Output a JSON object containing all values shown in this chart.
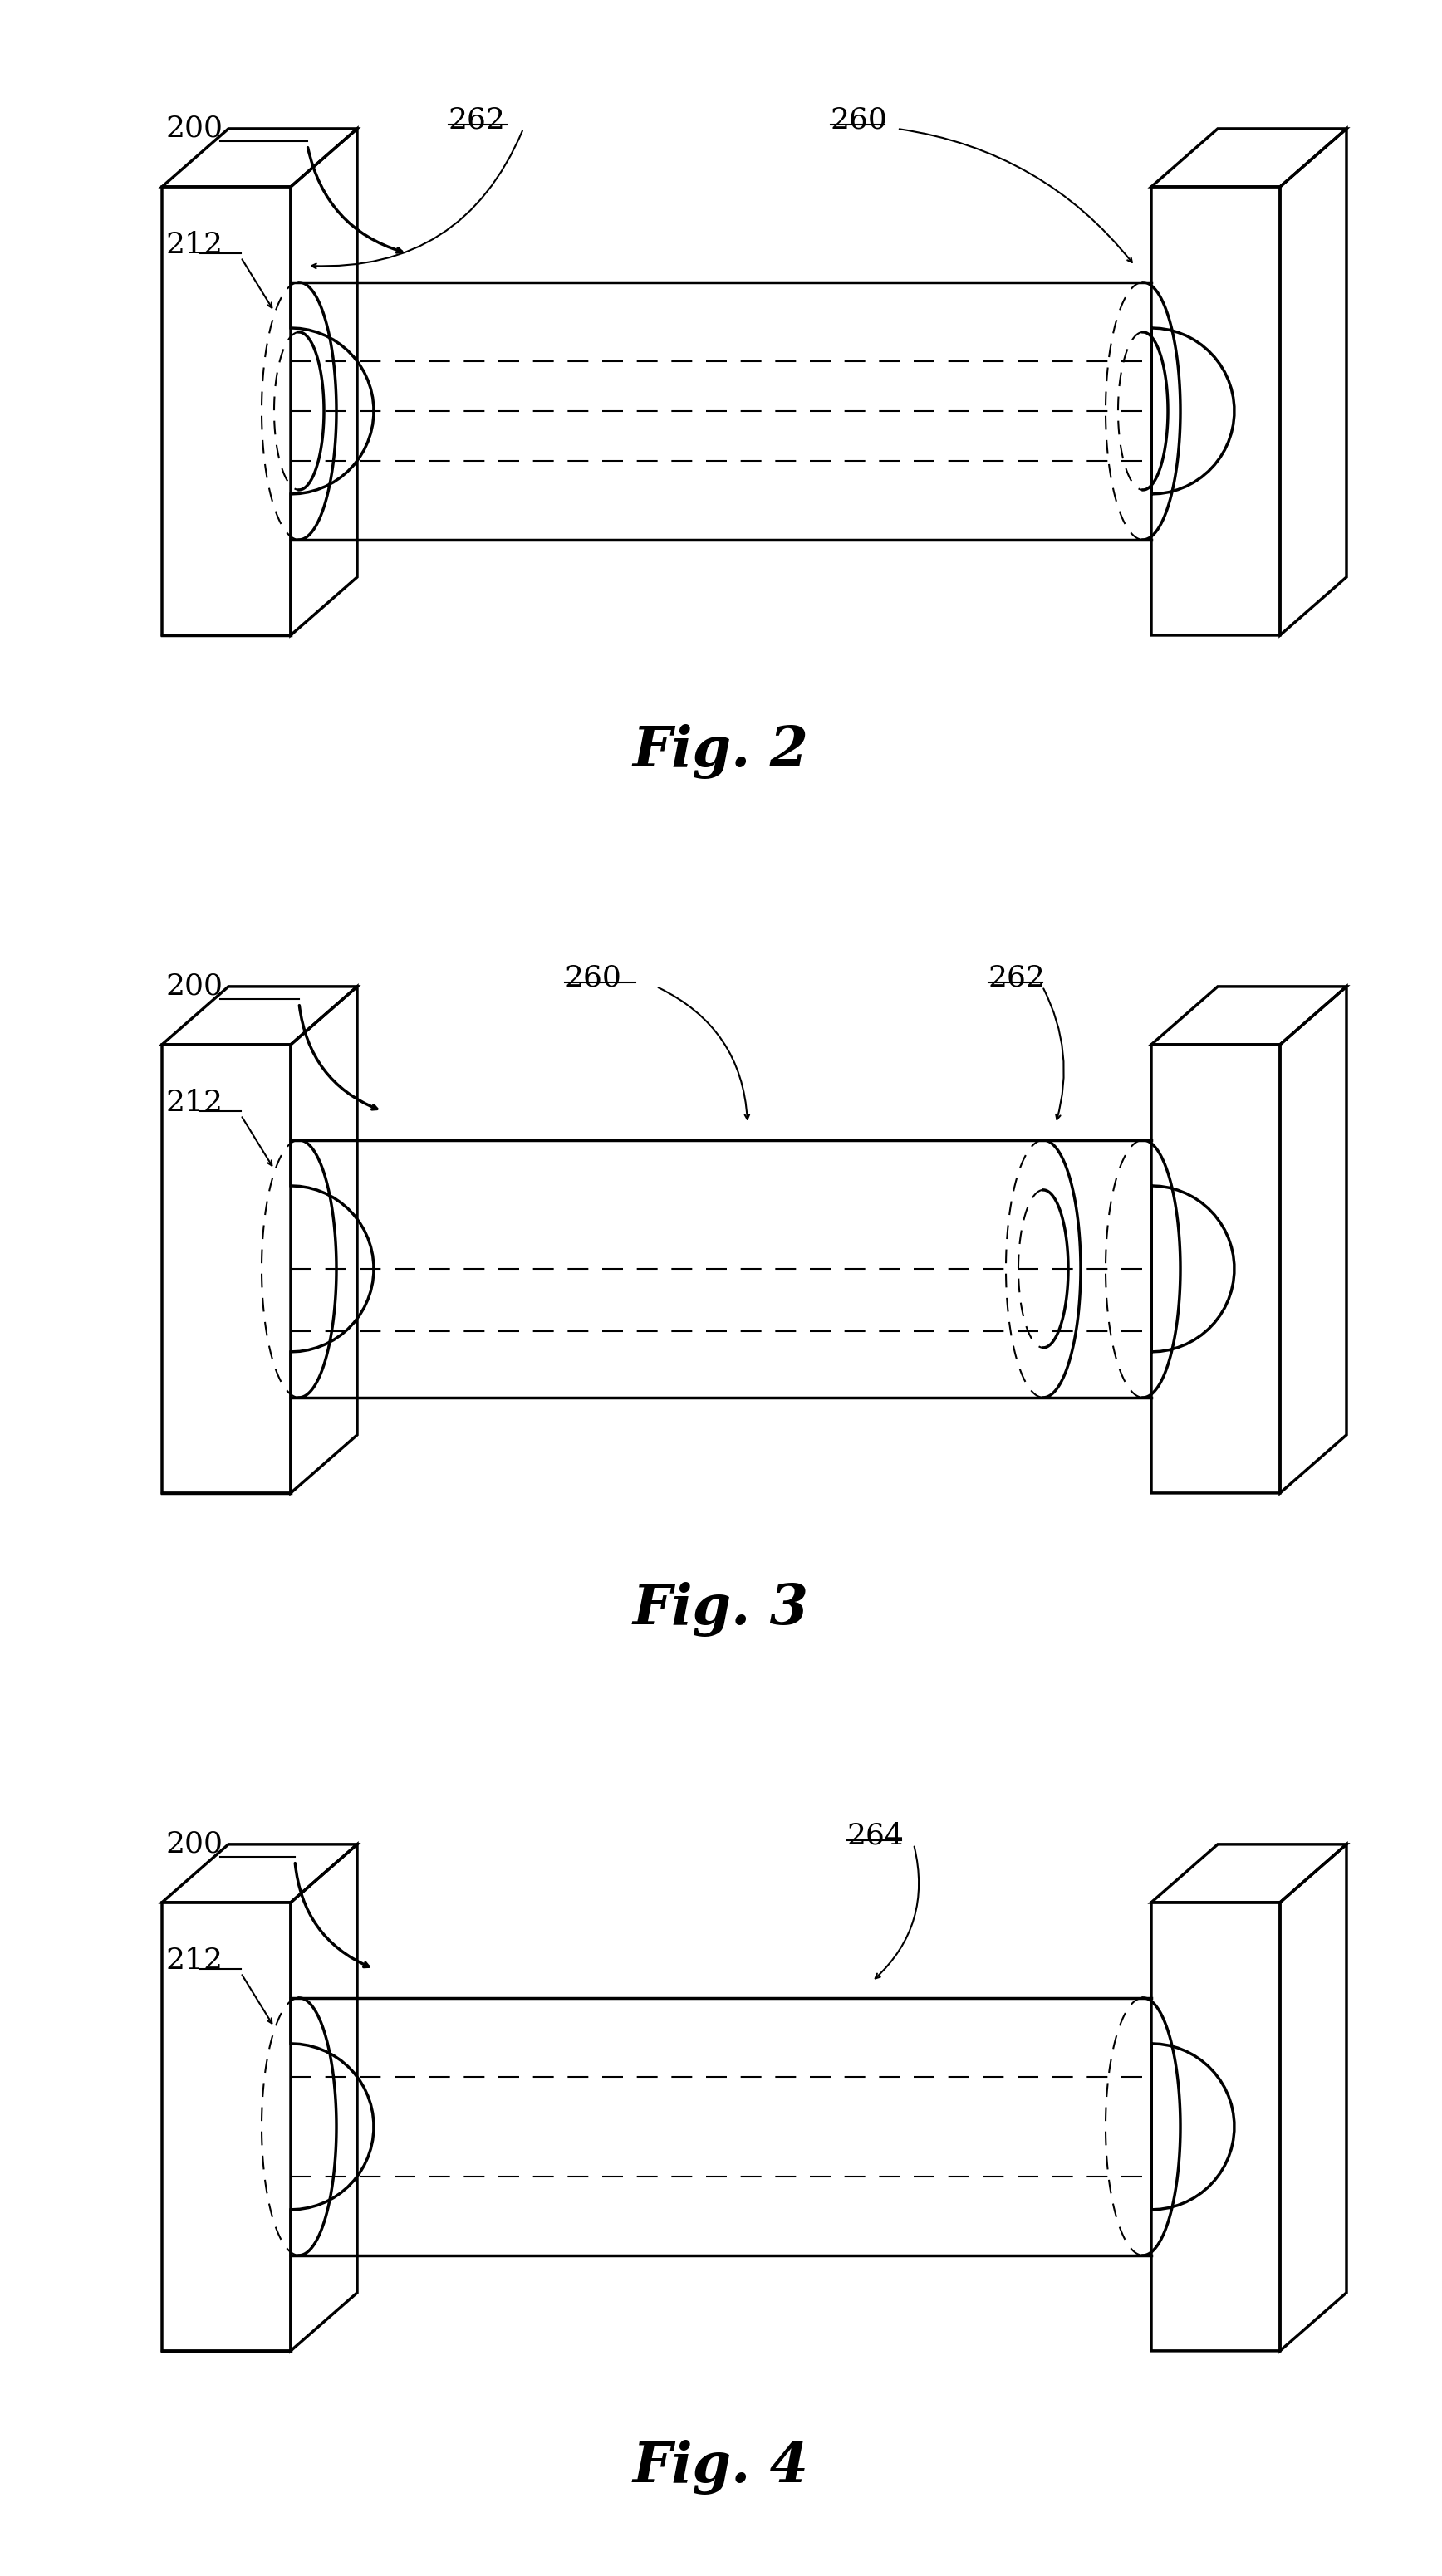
{
  "bg_color": "#ffffff",
  "line_color": "#000000",
  "fig_width": 17.36,
  "fig_height": 31.02,
  "lw": 2.5,
  "lw_thin": 1.5,
  "figures": [
    {
      "name": "Fig. 2",
      "labels": {
        "200": "200",
        "212": "212",
        "260": "260",
        "262": "262"
      }
    },
    {
      "name": "Fig. 3",
      "labels": {
        "200": "200",
        "212": "212",
        "260": "260",
        "262": "262"
      }
    },
    {
      "name": "Fig. 4",
      "labels": {
        "200": "200",
        "212": "212",
        "264": "264"
      }
    }
  ]
}
